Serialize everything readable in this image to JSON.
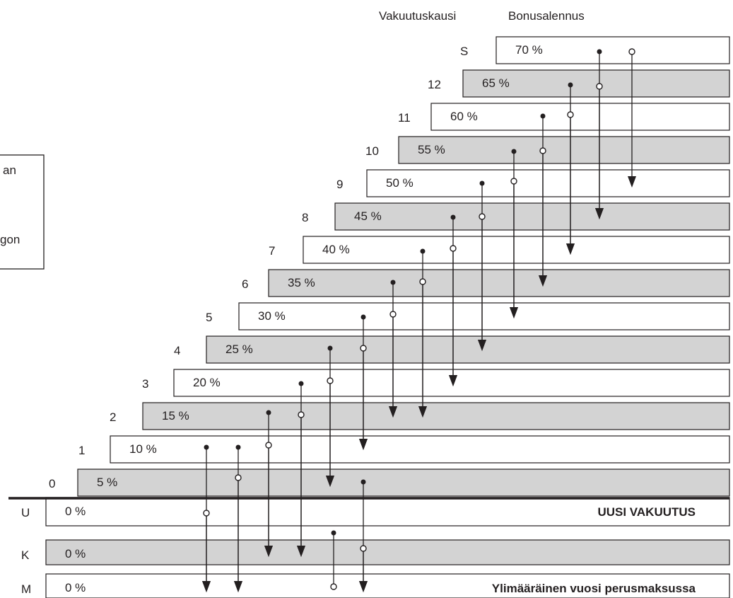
{
  "headers": {
    "period": "Vakuutuskausi",
    "discount": "Bonusalennus"
  },
  "legend_fragments": [
    "an",
    "gon"
  ],
  "classes": [
    {
      "period": "S",
      "discount": "70 %"
    },
    {
      "period": "12",
      "discount": "65 %"
    },
    {
      "period": "11",
      "discount": "60 %"
    },
    {
      "period": "10",
      "discount": "55 %"
    },
    {
      "period": "9",
      "discount": "50 %"
    },
    {
      "period": "8",
      "discount": "45 %"
    },
    {
      "period": "7",
      "discount": "40 %"
    },
    {
      "period": "6",
      "discount": "35 %"
    },
    {
      "period": "5",
      "discount": "30 %"
    },
    {
      "period": "4",
      "discount": "25 %"
    },
    {
      "period": "3",
      "discount": "20 %"
    },
    {
      "period": "2",
      "discount": "15 %"
    },
    {
      "period": "1",
      "discount": "10 %"
    },
    {
      "period": "0",
      "discount": "5 %"
    }
  ],
  "special_classes": [
    {
      "period": "U",
      "discount": "0 %",
      "note": "UUSI VAKUUTUS"
    },
    {
      "period": "K",
      "discount": "0 %",
      "note": ""
    },
    {
      "period": "M",
      "discount": "0 %",
      "note": "Ylimääräinen vuosi perusmaksussa"
    }
  ],
  "colors": {
    "shaded": "#d3d3d3",
    "plain": "#ffffff",
    "ink": "#231f20"
  }
}
